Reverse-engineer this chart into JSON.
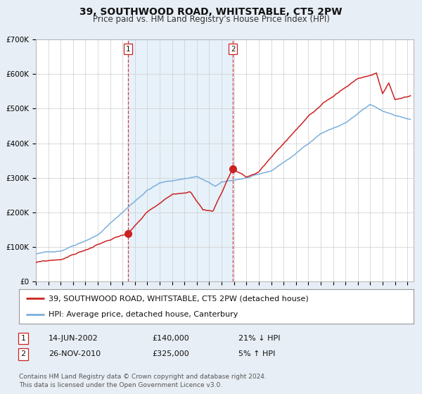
{
  "title": "39, SOUTHWOOD ROAD, WHITSTABLE, CT5 2PW",
  "subtitle": "Price paid vs. HM Land Registry's House Price Index (HPI)",
  "ylim": [
    0,
    700000
  ],
  "yticks": [
    0,
    100000,
    200000,
    300000,
    400000,
    500000,
    600000,
    700000
  ],
  "ytick_labels": [
    "£0",
    "£100K",
    "£200K",
    "£300K",
    "£400K",
    "£500K",
    "£600K",
    "£700K"
  ],
  "xlim_start": 1995.0,
  "xlim_end": 2025.5,
  "background_color": "#e8eef5",
  "plot_bg_color": "#ffffff",
  "grid_color": "#cccccc",
  "hpi_color": "#7aafdd",
  "price_color": "#cc2222",
  "sale1_date": 2002.45,
  "sale1_price": 140000,
  "sale2_date": 2010.91,
  "sale2_price": 325000,
  "shade_color": "#d0e4f5",
  "shade_alpha": 0.5,
  "legend_line1": "39, SOUTHWOOD ROAD, WHITSTABLE, CT5 2PW (detached house)",
  "legend_line2": "HPI: Average price, detached house, Canterbury",
  "table_row1": [
    "1",
    "14-JUN-2002",
    "£140,000",
    "21% ↓ HPI"
  ],
  "table_row2": [
    "2",
    "26-NOV-2010",
    "£325,000",
    "5% ↑ HPI"
  ],
  "footnote": "Contains HM Land Registry data © Crown copyright and database right 2024.\nThis data is licensed under the Open Government Licence v3.0.",
  "title_fontsize": 10,
  "subtitle_fontsize": 8.5,
  "tick_fontsize": 7.5,
  "legend_fontsize": 8,
  "table_fontsize": 8,
  "footnote_fontsize": 6.5
}
